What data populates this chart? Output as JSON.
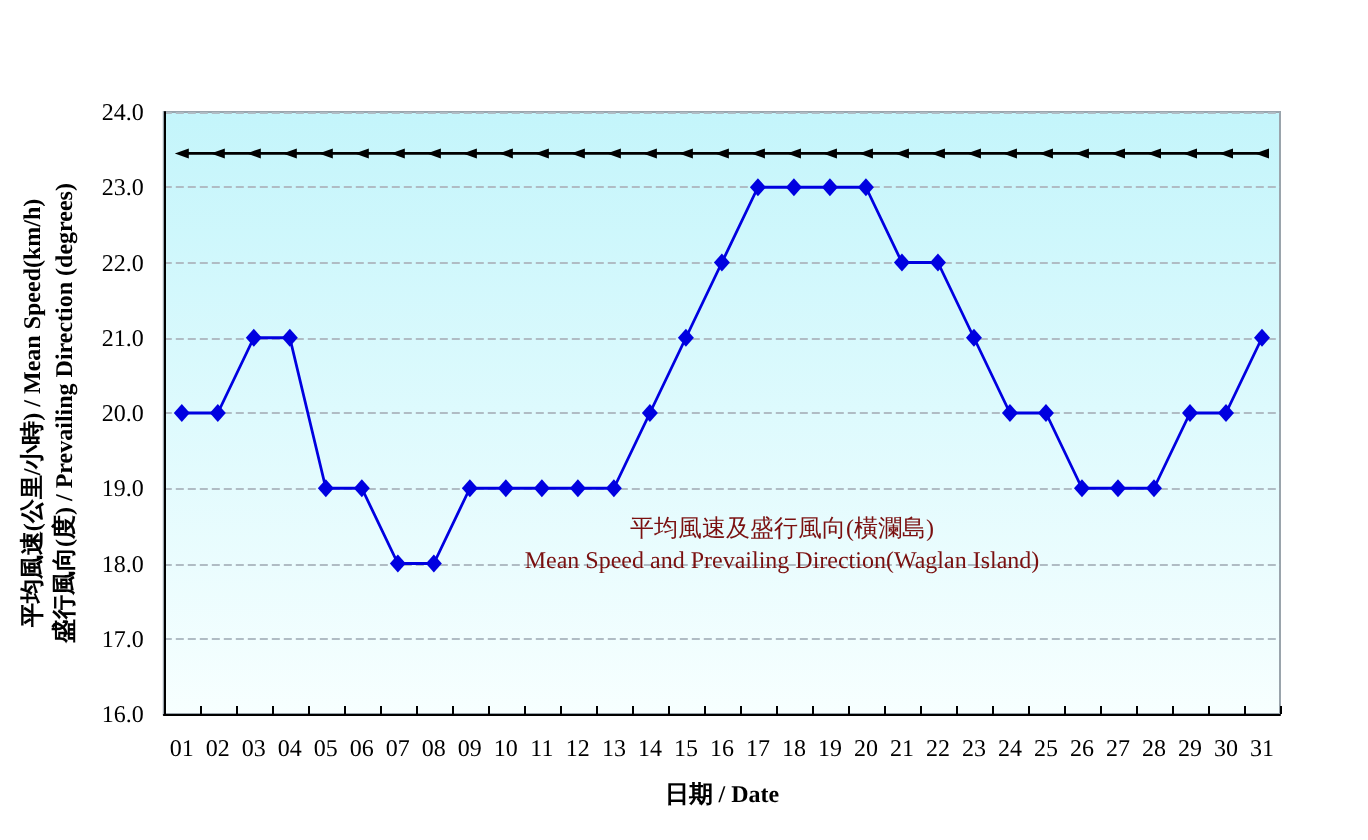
{
  "chart_data": {
    "type": "line",
    "title": "平均風速及盛行風向(橫瀾島)\nMean Speed and Prevailing Direction(Waglan Island)",
    "xlabel": "日期 / Date",
    "ylabel": "平均風速(公里/小時) / Mean Speed(km/h)\n盛行風向(度) / Prevailing Direction (degrees)",
    "categories": [
      "01",
      "02",
      "03",
      "04",
      "05",
      "06",
      "07",
      "08",
      "09",
      "10",
      "11",
      "12",
      "13",
      "14",
      "15",
      "16",
      "17",
      "18",
      "19",
      "20",
      "21",
      "22",
      "23",
      "24",
      "25",
      "26",
      "27",
      "28",
      "29",
      "30",
      "31"
    ],
    "series": [
      {
        "color": "#0000e0",
        "marker": "diamond",
        "values": [
          20,
          20,
          21,
          21,
          19,
          19,
          18,
          18,
          19,
          19,
          19,
          19,
          19,
          20,
          21,
          22,
          23,
          23,
          23,
          23,
          22,
          22,
          21,
          20,
          20,
          19,
          19,
          19,
          20,
          20,
          21
        ]
      },
      {
        "color": "#000000",
        "marker": "triangle",
        "values": [
          23.45,
          23.45,
          23.45,
          23.45,
          23.45,
          23.45,
          23.45,
          23.45,
          23.45,
          23.45,
          23.45,
          23.45,
          23.45,
          23.45,
          23.45,
          23.45,
          23.45,
          23.45,
          23.45,
          23.45,
          23.45,
          23.45,
          23.45,
          23.45,
          23.45,
          23.45,
          23.45,
          23.45,
          23.45,
          23.45,
          23.45
        ]
      }
    ],
    "ylim": [
      16,
      24
    ],
    "yticks": [
      {
        "value": 16,
        "label": "16.0"
      },
      {
        "value": 17,
        "label": "17.0"
      },
      {
        "value": 18,
        "label": "18.0"
      },
      {
        "value": 19,
        "label": "19.0"
      },
      {
        "value": 20,
        "label": "20.0"
      },
      {
        "value": 21,
        "label": "21.0"
      },
      {
        "value": 22,
        "label": "22.0"
      },
      {
        "value": 23,
        "label": "23.0"
      },
      {
        "value": 24,
        "label": "24.0"
      }
    ],
    "grid": "y"
  }
}
